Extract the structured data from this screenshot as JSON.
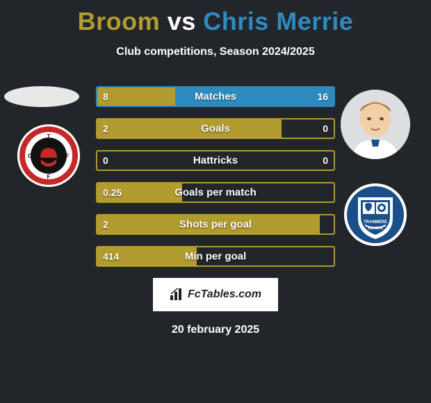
{
  "title_left": "Broom",
  "title_vs": "vs",
  "title_right": "Chris Merrie",
  "title_left_color": "#b29b2f",
  "title_right_color": "#2d8bbf",
  "subtitle": "Club competitions, Season 2024/2025",
  "footer_brand": "FcTables.com",
  "date": "20 february 2025",
  "bar_colors": {
    "left_fill": "#b29b2f",
    "right_fill": "#2d8bbf",
    "border_default": "#b29b2f",
    "border_alt": "#2d8bbf"
  },
  "bars": [
    {
      "label": "Matches",
      "left": "8",
      "right": "16",
      "left_pct": 33,
      "right_pct": 67,
      "border": "#2d8bbf"
    },
    {
      "label": "Goals",
      "left": "2",
      "right": "0",
      "left_pct": 78,
      "right_pct": 0,
      "border": "#b29b2f"
    },
    {
      "label": "Hattricks",
      "left": "0",
      "right": "0",
      "left_pct": 0,
      "right_pct": 0,
      "border": "#b29b2f"
    },
    {
      "label": "Goals per match",
      "left": "0.25",
      "right": "",
      "left_pct": 36,
      "right_pct": 0,
      "border": "#b29b2f"
    },
    {
      "label": "Shots per goal",
      "left": "2",
      "right": "",
      "left_pct": 94,
      "right_pct": 0,
      "border": "#b29b2f"
    },
    {
      "label": "Min per goal",
      "left": "414",
      "right": "",
      "left_pct": 42,
      "right_pct": 0,
      "border": "#b29b2f"
    }
  ],
  "badge_left": {
    "bg": "#ffffff",
    "ring": "#c62828",
    "inner": "#111111"
  },
  "badge_right": {
    "bg": "#ffffff",
    "shield": "#1b4f8a"
  }
}
